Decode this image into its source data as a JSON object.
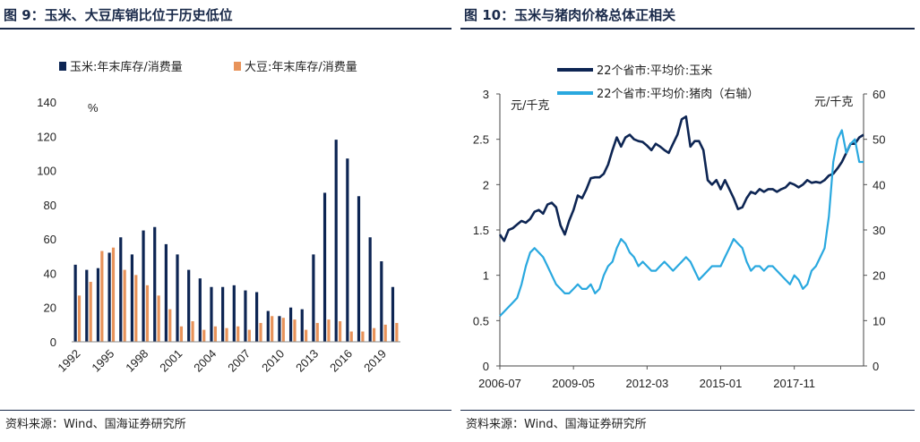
{
  "left": {
    "title": "图 9：玉米、大豆库销比位于历史低位",
    "source": "资料来源：Wind、国海证券研究所",
    "colors": {
      "corn": "#0d2553",
      "soy": "#e8935a"
    },
    "chart_data": {
      "type": "bar",
      "unit_label": "%",
      "ylim": [
        0,
        140
      ],
      "yticks": [
        0,
        20,
        40,
        60,
        80,
        100,
        120,
        140
      ],
      "categories": [
        "1992",
        "1993",
        "1994",
        "1995",
        "1996",
        "1997",
        "1998",
        "1999",
        "2000",
        "2001",
        "2002",
        "2003",
        "2004",
        "2005",
        "2006",
        "2007",
        "2008",
        "2009",
        "2010",
        "2011",
        "2012",
        "2013",
        "2014",
        "2015",
        "2016",
        "2017",
        "2018",
        "2019",
        "2020"
      ],
      "xtick_labels": [
        "1992",
        "1995",
        "1998",
        "2001",
        "2004",
        "2007",
        "2010",
        "2013",
        "2016",
        "2019"
      ],
      "series": [
        {
          "name": "玉米:年末库存/消费量",
          "values": [
            45,
            42,
            43,
            52,
            61,
            51,
            65,
            67,
            57,
            51,
            42,
            37,
            32,
            32,
            33,
            30,
            29,
            18,
            15,
            20,
            19,
            51,
            87,
            118,
            107,
            85,
            61,
            47,
            32
          ]
        },
        {
          "name": "大豆:年末库存/消费量",
          "values": [
            27,
            35,
            53,
            55,
            42,
            39,
            33,
            27,
            19,
            9,
            12,
            7,
            9,
            8,
            9,
            7,
            11,
            15,
            14,
            13,
            7,
            11,
            13,
            12,
            6,
            6,
            8,
            10,
            11
          ]
        }
      ],
      "grid": false,
      "legend_position": "top"
    }
  },
  "right": {
    "title": "图 10：玉米与猪肉价格总体正相关",
    "source": "资料来源：Wind、国海证券研究所",
    "colors": {
      "corn": "#0d2553",
      "pork": "#29a8df"
    },
    "chart_data": {
      "type": "line",
      "y_left": {
        "label": "元/千克",
        "ylim": [
          0,
          3
        ],
        "ticks": [
          "0",
          "0.5",
          "1",
          "1.5",
          "2",
          "2.5",
          "3"
        ]
      },
      "y_right": {
        "label": "元/千克",
        "ylim": [
          0,
          60
        ],
        "ticks": [
          "0",
          "10",
          "20",
          "30",
          "40",
          "50",
          "60"
        ]
      },
      "xlim": [
        "2006-07",
        "2020-07"
      ],
      "xtick_labels": [
        "2006-07",
        "2009-05",
        "2012-03",
        "2015-01",
        "2017-11"
      ],
      "series": [
        {
          "name": "22个省市:平均价:玉米",
          "axis": "left",
          "x": [
            "2006-07",
            "2006-09",
            "2006-11",
            "2007-01",
            "2007-03",
            "2007-05",
            "2007-07",
            "2007-09",
            "2007-11",
            "2008-01",
            "2008-03",
            "2008-05",
            "2008-07",
            "2008-09",
            "2008-11",
            "2009-01",
            "2009-03",
            "2009-05",
            "2009-07",
            "2009-09",
            "2009-11",
            "2010-01",
            "2010-03",
            "2010-05",
            "2010-07",
            "2010-09",
            "2010-11",
            "2011-01",
            "2011-03",
            "2011-05",
            "2011-07",
            "2011-09",
            "2011-11",
            "2012-01",
            "2012-03",
            "2012-05",
            "2012-07",
            "2012-09",
            "2012-11",
            "2013-01",
            "2013-03",
            "2013-05",
            "2013-07",
            "2013-09",
            "2013-11",
            "2014-01",
            "2014-03",
            "2014-05",
            "2014-07",
            "2014-09",
            "2014-11",
            "2015-01",
            "2015-03",
            "2015-05",
            "2015-07",
            "2015-09",
            "2015-11",
            "2016-01",
            "2016-03",
            "2016-05",
            "2016-07",
            "2016-09",
            "2016-11",
            "2017-01",
            "2017-03",
            "2017-05",
            "2017-07",
            "2017-09",
            "2017-11",
            "2018-01",
            "2018-03",
            "2018-05",
            "2018-07",
            "2018-09",
            "2018-11",
            "2019-01",
            "2019-03",
            "2019-05",
            "2019-07",
            "2019-09",
            "2019-11",
            "2020-01",
            "2020-03",
            "2020-05",
            "2020-07"
          ],
          "y": [
            1.45,
            1.38,
            1.5,
            1.52,
            1.56,
            1.6,
            1.58,
            1.62,
            1.7,
            1.72,
            1.68,
            1.78,
            1.8,
            1.75,
            1.55,
            1.45,
            1.6,
            1.72,
            1.88,
            1.85,
            1.95,
            2.07,
            2.08,
            2.08,
            2.12,
            2.22,
            2.38,
            2.52,
            2.42,
            2.52,
            2.55,
            2.5,
            2.48,
            2.47,
            2.43,
            2.38,
            2.45,
            2.42,
            2.38,
            2.35,
            2.45,
            2.55,
            2.72,
            2.75,
            2.42,
            2.48,
            2.48,
            2.38,
            2.05,
            2.0,
            2.05,
            1.95,
            2.05,
            1.95,
            1.85,
            1.73,
            1.75,
            1.85,
            1.92,
            1.9,
            1.95,
            1.92,
            1.95,
            1.95,
            1.92,
            1.95,
            1.97,
            2.02,
            2.0,
            1.97,
            2.0,
            2.05,
            2.02,
            2.03,
            2.02,
            2.05,
            2.1,
            2.12,
            2.18,
            2.25,
            2.35,
            2.45,
            2.45,
            2.52,
            2.55
          ]
        },
        {
          "name": "22个省市:平均价:猪肉（右轴）",
          "axis": "right",
          "x": [
            "2006-07",
            "2006-09",
            "2006-11",
            "2007-01",
            "2007-03",
            "2007-05",
            "2007-07",
            "2007-09",
            "2007-11",
            "2008-01",
            "2008-03",
            "2008-05",
            "2008-07",
            "2008-09",
            "2008-11",
            "2009-01",
            "2009-03",
            "2009-05",
            "2009-07",
            "2009-09",
            "2009-11",
            "2010-01",
            "2010-03",
            "2010-05",
            "2010-07",
            "2010-09",
            "2010-11",
            "2011-01",
            "2011-03",
            "2011-05",
            "2011-07",
            "2011-09",
            "2011-11",
            "2012-01",
            "2012-03",
            "2012-05",
            "2012-07",
            "2012-09",
            "2012-11",
            "2013-01",
            "2013-03",
            "2013-05",
            "2013-07",
            "2013-09",
            "2013-11",
            "2014-01",
            "2014-03",
            "2014-05",
            "2014-07",
            "2014-09",
            "2014-11",
            "2015-01",
            "2015-03",
            "2015-05",
            "2015-07",
            "2015-09",
            "2015-11",
            "2016-01",
            "2016-03",
            "2016-05",
            "2016-07",
            "2016-09",
            "2016-11",
            "2017-01",
            "2017-03",
            "2017-05",
            "2017-07",
            "2017-09",
            "2017-11",
            "2018-01",
            "2018-03",
            "2018-05",
            "2018-07",
            "2018-09",
            "2018-11",
            "2019-01",
            "2019-03",
            "2019-05",
            "2019-07",
            "2019-09",
            "2019-11",
            "2020-01",
            "2020-03",
            "2020-05",
            "2020-07"
          ],
          "y": [
            11,
            12,
            13,
            14,
            15,
            18,
            22,
            25,
            26,
            25,
            24,
            22,
            20,
            18,
            17,
            16,
            16,
            17,
            18,
            17,
            17,
            18,
            16,
            17,
            20,
            22,
            23,
            26,
            28,
            27,
            25,
            24,
            22,
            23,
            22,
            21,
            21,
            22,
            23,
            22,
            21,
            22,
            23,
            24,
            23,
            21,
            19,
            20,
            21,
            22,
            22,
            22,
            24,
            26,
            28,
            27,
            26,
            23,
            21,
            22,
            22,
            21,
            22,
            22,
            21,
            20,
            19,
            18,
            20,
            19,
            17,
            18,
            21,
            22,
            24,
            26,
            33,
            45,
            50,
            52,
            47,
            49,
            50,
            45,
            45
          ]
        }
      ],
      "grid": false,
      "legend_position": "top"
    }
  }
}
